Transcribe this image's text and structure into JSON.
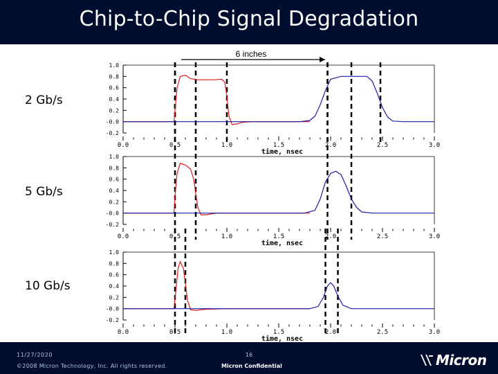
{
  "slide": {
    "title": "Chip-to-Chip Signal Degradation",
    "distance_label": "6 inches"
  },
  "rate_labels": [
    "2 Gb/s",
    "5 Gb/s",
    "10 Gb/s"
  ],
  "footer": {
    "date": "11/27/2020",
    "page": "16",
    "copyright": "©2008 Micron Technology, Inc. All rights reserved.",
    "confidential": "Micron Confidential",
    "logo_text": "Micron"
  },
  "colors": {
    "background_bar": "#000d2e",
    "input_trace": "#dd1a1a",
    "output_trace": "#1a1aa8",
    "marker": "#000000"
  },
  "chart_data": [
    {
      "type": "line",
      "data_rate": "2 Gb/s",
      "xlabel": "time, nsec",
      "ylabel": "",
      "xlim": [
        0.0,
        3.0
      ],
      "ylim": [
        -0.2,
        1.0
      ],
      "xticks": [
        "0.0",
        "0.5",
        "1.0",
        "1.5",
        "2.0",
        "2.5",
        "3.0"
      ],
      "yticks": [
        "1.0",
        "0.8",
        "0.6",
        "0.4",
        "0.2",
        "-0.0",
        "-0.2"
      ],
      "marker_times": [
        0.5,
        1.0,
        1.97,
        2.48
      ],
      "series": [
        {
          "color": "#dd1a1a",
          "x": [
            0.0,
            0.49,
            0.5,
            0.52,
            0.55,
            0.6,
            0.65,
            0.72,
            0.8,
            0.88,
            0.95,
            0.98,
            1.0,
            1.02,
            1.05,
            1.1,
            1.15,
            1.25,
            1.4,
            1.6,
            1.8
          ],
          "y": [
            0.0,
            0.0,
            0.2,
            0.6,
            0.8,
            0.82,
            0.76,
            0.74,
            0.74,
            0.74,
            0.75,
            0.7,
            0.45,
            0.1,
            -0.05,
            -0.04,
            -0.01,
            0.0,
            0.0,
            0.0,
            0.0
          ]
        },
        {
          "color": "#1a1aa8",
          "x": [
            0.0,
            0.5,
            1.0,
            1.5,
            1.7,
            1.8,
            1.85,
            1.9,
            1.95,
            2.0,
            2.1,
            2.25,
            2.35,
            2.4,
            2.45,
            2.5,
            2.55,
            2.6,
            2.7,
            2.8,
            3.0
          ],
          "y": [
            0.0,
            0.0,
            0.0,
            0.0,
            0.0,
            0.02,
            0.1,
            0.3,
            0.55,
            0.75,
            0.8,
            0.8,
            0.8,
            0.72,
            0.5,
            0.25,
            0.08,
            0.01,
            0.0,
            0.0,
            0.0
          ]
        }
      ]
    },
    {
      "type": "line",
      "data_rate": "5 Gb/s",
      "xlabel": "time, nsec",
      "ylabel": "",
      "xlim": [
        0.0,
        3.0
      ],
      "ylim": [
        -0.2,
        1.0
      ],
      "xticks": [
        "0.0",
        "0.5",
        "1.0",
        "1.5",
        "2.0",
        "2.5",
        "3.0"
      ],
      "yticks": [
        "1.0",
        "0.8",
        "0.6",
        "0.4",
        "0.2",
        "-0.0",
        "-0.2"
      ],
      "marker_times": [
        0.5,
        0.7,
        1.97,
        2.2
      ],
      "series": [
        {
          "color": "#dd1a1a",
          "x": [
            0.0,
            0.49,
            0.5,
            0.52,
            0.55,
            0.6,
            0.65,
            0.68,
            0.7,
            0.72,
            0.75,
            0.8,
            0.9,
            1.0,
            1.2,
            1.4,
            1.8
          ],
          "y": [
            0.0,
            0.0,
            0.3,
            0.7,
            0.88,
            0.85,
            0.78,
            0.6,
            0.35,
            0.1,
            -0.03,
            -0.03,
            0.0,
            0.0,
            0.0,
            0.0,
            0.0
          ]
        },
        {
          "color": "#1a1aa8",
          "x": [
            0.0,
            0.5,
            1.0,
            1.5,
            1.75,
            1.85,
            1.9,
            1.95,
            2.0,
            2.05,
            2.1,
            2.15,
            2.2,
            2.25,
            2.3,
            2.4,
            3.0
          ],
          "y": [
            0.0,
            0.0,
            0.0,
            0.0,
            0.0,
            0.05,
            0.25,
            0.55,
            0.7,
            0.74,
            0.68,
            0.48,
            0.25,
            0.1,
            0.02,
            0.0,
            0.0
          ]
        }
      ]
    },
    {
      "type": "line",
      "data_rate": "10 Gb/s",
      "xlabel": "time, nsec",
      "ylabel": "",
      "xlim": [
        0.0,
        3.0
      ],
      "ylim": [
        -0.2,
        1.0
      ],
      "xticks": [
        "0.0",
        "0.5",
        "1.0",
        "1.5",
        "2.0",
        "2.5",
        "3.0"
      ],
      "yticks": [
        "1.0",
        "0.8",
        "0.6",
        "0.4",
        "0.2",
        "-0.0",
        "-0.2"
      ],
      "marker_times": [
        0.5,
        0.6,
        1.95,
        2.07
      ],
      "series": [
        {
          "color": "#dd1a1a",
          "x": [
            0.0,
            0.49,
            0.51,
            0.53,
            0.55,
            0.58,
            0.6,
            0.62,
            0.65,
            0.7,
            0.8,
            1.0,
            1.4,
            1.8
          ],
          "y": [
            0.0,
            0.0,
            0.35,
            0.72,
            0.83,
            0.72,
            0.45,
            0.15,
            -0.02,
            -0.03,
            -0.01,
            0.0,
            0.0,
            0.0
          ]
        },
        {
          "color": "#1a1aa8",
          "x": [
            0.0,
            0.5,
            1.0,
            1.5,
            1.8,
            1.88,
            1.93,
            1.97,
            2.0,
            2.03,
            2.07,
            2.12,
            2.2,
            2.4,
            3.0
          ],
          "y": [
            0.0,
            0.0,
            0.0,
            0.0,
            0.0,
            0.04,
            0.2,
            0.4,
            0.46,
            0.4,
            0.22,
            0.06,
            0.0,
            0.0,
            0.0
          ]
        }
      ]
    }
  ]
}
